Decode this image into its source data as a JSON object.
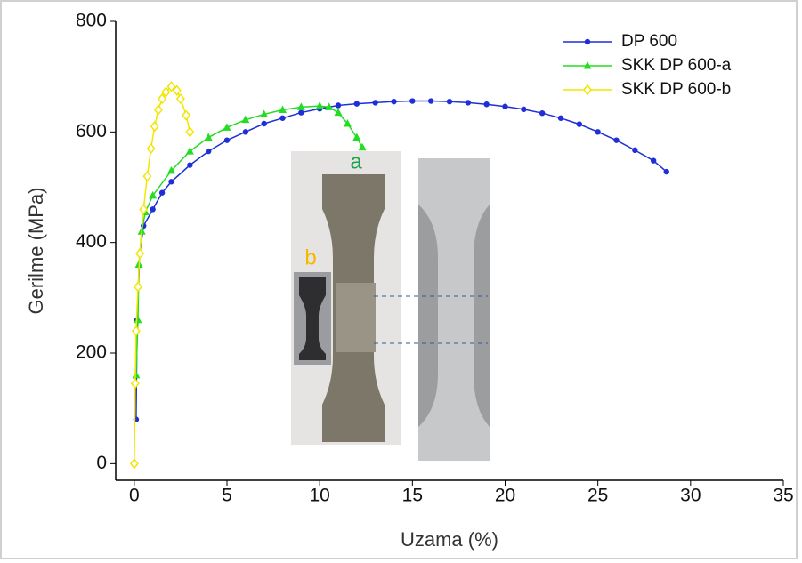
{
  "chart_data": {
    "type": "line",
    "xlabel": "Uzama  (%)",
    "ylabel": "Gerilme (MPa)",
    "xlim": [
      -1,
      35
    ],
    "ylim": [
      -30,
      800
    ],
    "xticks": [
      0,
      5,
      10,
      15,
      20,
      25,
      30,
      35
    ],
    "yticks": [
      0,
      200,
      400,
      600,
      800
    ],
    "legend": "top-right",
    "series": [
      {
        "name": "DP 600",
        "color": "#1f2fd8",
        "marker": "circle",
        "x": [
          0.1,
          0.15,
          0.3,
          0.5,
          1,
          1.5,
          2,
          3,
          4,
          5,
          6,
          7,
          8,
          9,
          10,
          11,
          12,
          13,
          14,
          15,
          16,
          17,
          18,
          19,
          20,
          21,
          22,
          23,
          24,
          25,
          26,
          27,
          28,
          28.7
        ],
        "values": [
          80,
          260,
          380,
          430,
          460,
          490,
          510,
          540,
          565,
          585,
          600,
          615,
          625,
          635,
          642,
          648,
          651,
          653,
          655,
          656,
          656,
          655,
          653,
          650,
          646,
          641,
          634,
          625,
          614,
          600,
          585,
          567,
          548,
          528
        ]
      },
      {
        "name": "SKK DP 600-a",
        "color": "#22dd22",
        "marker": "triangle",
        "x": [
          0.1,
          0.2,
          0.25,
          0.4,
          0.6,
          1,
          2,
          3,
          4,
          5,
          6,
          7,
          8,
          9,
          10,
          10.5,
          11,
          11.5,
          12,
          12.3
        ],
        "values": [
          160,
          260,
          360,
          420,
          455,
          485,
          530,
          565,
          590,
          608,
          622,
          632,
          640,
          645,
          647,
          645,
          635,
          615,
          590,
          572
        ]
      },
      {
        "name": "SKK DP 600-b",
        "color": "#f2e600",
        "marker": "diamond",
        "x": [
          0,
          0.05,
          0.1,
          0.2,
          0.3,
          0.5,
          0.7,
          0.9,
          1.1,
          1.3,
          1.5,
          1.7,
          2,
          2.3,
          2.5,
          2.8,
          3
        ],
        "values": [
          0,
          145,
          240,
          320,
          380,
          460,
          520,
          570,
          610,
          640,
          660,
          672,
          682,
          675,
          660,
          630,
          600
        ]
      }
    ],
    "annotations": [
      {
        "text": "a",
        "color": "#1aa34a"
      },
      {
        "text": "b",
        "color": "#f5b800"
      }
    ]
  }
}
